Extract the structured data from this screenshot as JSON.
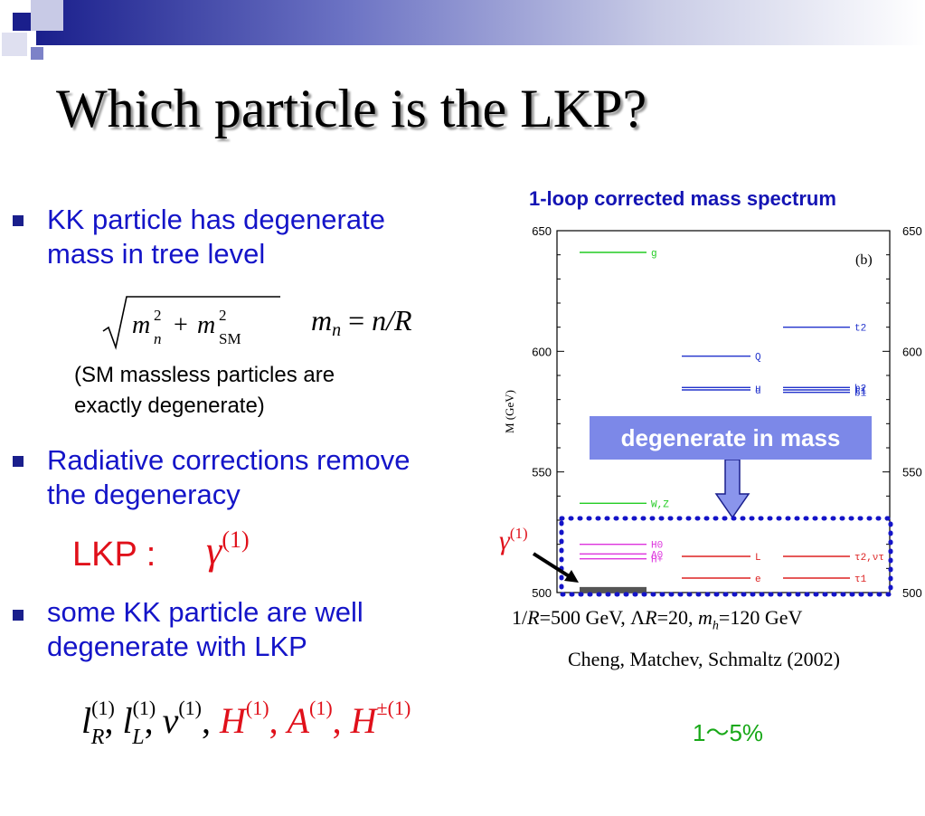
{
  "slide": {
    "title": "Which particle is the LKP?",
    "bullets": [
      {
        "line1": "KK particle has degenerate",
        "line2": "mass in tree level"
      },
      {
        "line1": "Radiative corrections remove",
        "line2": "the degeneracy"
      },
      {
        "line1": "some KK particle are well",
        "line2": "degenerate with LKP"
      }
    ],
    "formula_sqrt": "√(m²ₙ + m²SM)",
    "formula_mn": "mₙ = n/R",
    "note_line1": "(SM massless particles are",
    "note_line2": "exactly degenerate)",
    "lkp_label": "LKP :",
    "lkp_symbol": "γ(1)",
    "bottom_formula": {
      "lR": "l",
      "lR_sup": "(1)",
      "lR_sub": "R",
      "lL": "l",
      "lL_sup": "(1)",
      "lL_sub": "L",
      "nu": "ν",
      "nu_sup": "(1)",
      "H": "H",
      "H_sup": "(1)",
      "A": "A",
      "A_sup": "(1)",
      "Hpm": "H",
      "Hpm_sup": "±(1)"
    },
    "percent_label": "1～5%",
    "colors": {
      "bullet_text": "#1414c8",
      "red": "#e0101a",
      "green": "#18a818",
      "header": "#1a1f8c"
    }
  },
  "chart": {
    "title": "1-loop corrected mass spectrum",
    "panel_label": "(b)",
    "ylabel": "M (GeV)",
    "yticks": [
      "650",
      "600",
      "550",
      "500"
    ],
    "yticks_right": [
      "650",
      "600",
      "550",
      "500"
    ],
    "callout": "degenerate in mass",
    "pointer_label": "γ(1)",
    "params": "1/R=500 GeV, ΛR=20, mh=120 GeV",
    "citation": "Cheng, Matchev, Schmaltz (2002)"
  },
  "chart_data": {
    "type": "level-diagram",
    "title": "1-loop corrected mass spectrum",
    "ylabel": "M (GeV)",
    "ylim": [
      500,
      650
    ],
    "grid": false,
    "levels": [
      {
        "label": "g",
        "mass": 641,
        "column": 1,
        "color": "#22cc22"
      },
      {
        "label": "W,Z",
        "mass": 537,
        "column": 1,
        "color": "#22cc22"
      },
      {
        "label": "H0",
        "mass": 520,
        "column": 1,
        "color": "#dd33dd"
      },
      {
        "label": "A0",
        "mass": 516,
        "column": 1,
        "color": "#dd33dd"
      },
      {
        "label": "H+",
        "mass": 514,
        "column": 1,
        "color": "#dd33dd"
      },
      {
        "label": "γ1",
        "mass": 501,
        "column": 1,
        "color": "#555555"
      },
      {
        "label": "Q",
        "mass": 598,
        "column": 2,
        "color": "#2233cc"
      },
      {
        "label": "u",
        "mass": 585,
        "column": 2,
        "color": "#2233cc"
      },
      {
        "label": "d",
        "mass": 584,
        "column": 2,
        "color": "#2233cc"
      },
      {
        "label": "L",
        "mass": 515,
        "column": 2,
        "color": "#dd2222"
      },
      {
        "label": "e",
        "mass": 506,
        "column": 2,
        "color": "#dd2222"
      },
      {
        "label": "t2",
        "mass": 610,
        "column": 3,
        "color": "#2233cc"
      },
      {
        "label": "b2",
        "mass": 585,
        "column": 3,
        "color": "#2233cc"
      },
      {
        "label": "t1",
        "mass": 584,
        "column": 3,
        "color": "#2233cc"
      },
      {
        "label": "b1",
        "mass": 583,
        "column": 3,
        "color": "#2233cc"
      },
      {
        "label": "τ2,ντ",
        "mass": 515,
        "column": 3,
        "color": "#dd2222"
      },
      {
        "label": "τ1",
        "mass": 506,
        "column": 3,
        "color": "#dd2222"
      }
    ]
  }
}
